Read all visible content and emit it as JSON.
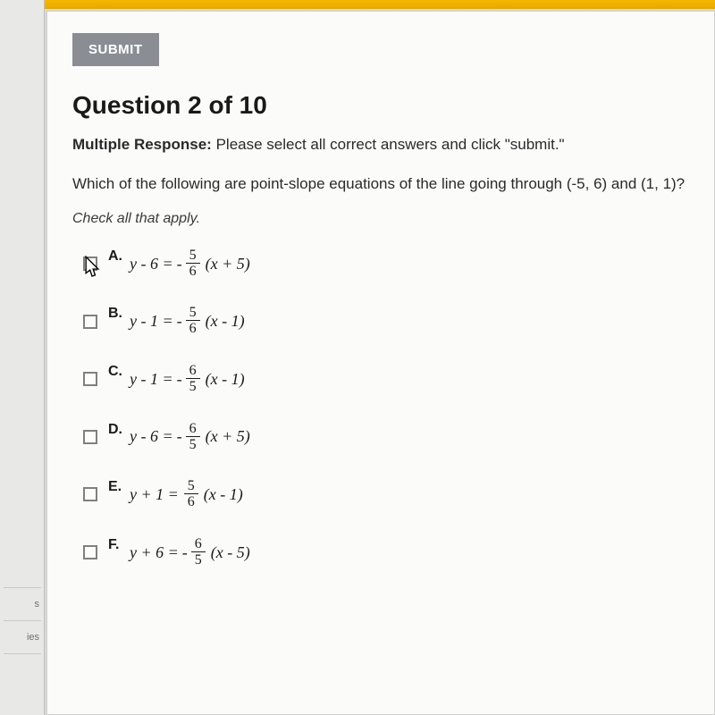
{
  "sidebar": {
    "items": [
      "s",
      "ies"
    ]
  },
  "topbar": {
    "accent_color": "#f5b800"
  },
  "submit": {
    "label": "SUBMIT",
    "bg_color": "#8a8e94",
    "text_color": "#ffffff"
  },
  "question": {
    "number": 2,
    "total": 10,
    "title": "Question 2 of 10",
    "type_label": "Multiple Response:",
    "type_instruction": "Please select all correct answers and click \"submit.\"",
    "text": "Which of the following are point-slope equations of the line going through (-5, 6) and (1, 1)?",
    "check_all": "Check all that apply."
  },
  "options": [
    {
      "letter": "A.",
      "lhs": "y - 6 =",
      "sign": "-",
      "num": "5",
      "den": "6",
      "rhs": "(x + 5)",
      "has_cursor": true
    },
    {
      "letter": "B.",
      "lhs": "y - 1 =",
      "sign": "-",
      "num": "5",
      "den": "6",
      "rhs": "(x - 1)",
      "has_cursor": false
    },
    {
      "letter": "C.",
      "lhs": "y - 1 =",
      "sign": "-",
      "num": "6",
      "den": "5",
      "rhs": "(x - 1)",
      "has_cursor": false
    },
    {
      "letter": "D.",
      "lhs": "y - 6 =",
      "sign": "-",
      "num": "6",
      "den": "5",
      "rhs": "(x + 5)",
      "has_cursor": false
    },
    {
      "letter": "E.",
      "lhs": "y + 1 =",
      "sign": "",
      "num": "5",
      "den": "6",
      "rhs": "(x - 1)",
      "has_cursor": false
    },
    {
      "letter": "F.",
      "lhs": "y + 6 =",
      "sign": "-",
      "num": "6",
      "den": "5",
      "rhs": "(x - 5)",
      "has_cursor": false
    }
  ],
  "colors": {
    "panel_bg": "#fbfbfa",
    "body_bg": "#d8d8d6",
    "text": "#1a1a1a",
    "border": "#d0d0ce"
  }
}
